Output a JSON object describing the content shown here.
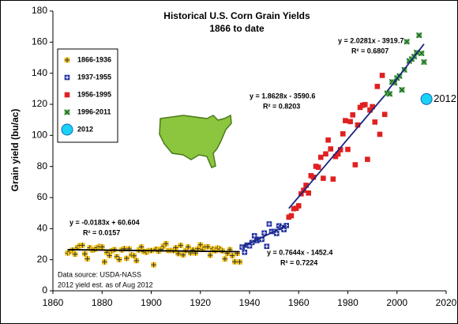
{
  "chart_data": {
    "type": "scatter",
    "title": [
      "Historical U.S. Corn Grain Yields",
      "1866 to date"
    ],
    "y_label": "Grain yield (bu/ac)",
    "annotations": [
      "Data source: USDA-NASS",
      "2012 yield est. as of Aug 2012"
    ],
    "xlim": [
      1860,
      2020
    ],
    "xticks": [
      1860,
      1880,
      1900,
      1920,
      1940,
      1960,
      1980,
      2000,
      2020
    ],
    "ylim": [
      0,
      180
    ],
    "yticks": [
      0,
      20,
      40,
      60,
      80,
      100,
      120,
      140,
      160,
      180
    ],
    "grid": false,
    "legend": "upper left",
    "series": [
      {
        "name": "1866-1936",
        "color": "#f5c518",
        "marker": "star",
        "x": [
          1866,
          1867,
          1868,
          1869,
          1870,
          1871,
          1872,
          1873,
          1874,
          1875,
          1876,
          1877,
          1878,
          1879,
          1880,
          1881,
          1882,
          1883,
          1884,
          1885,
          1886,
          1887,
          1888,
          1889,
          1890,
          1891,
          1892,
          1893,
          1894,
          1895,
          1896,
          1897,
          1898,
          1899,
          1900,
          1901,
          1902,
          1903,
          1904,
          1905,
          1906,
          1907,
          1908,
          1909,
          1910,
          1911,
          1912,
          1913,
          1914,
          1915,
          1916,
          1917,
          1918,
          1919,
          1920,
          1921,
          1922,
          1923,
          1924,
          1925,
          1926,
          1927,
          1928,
          1929,
          1930,
          1931,
          1932,
          1933,
          1934,
          1935,
          1936
        ],
        "values": [
          24.3,
          25.3,
          26.2,
          23.6,
          27.9,
          29.1,
          29.3,
          23.8,
          20.6,
          27.7,
          26.2,
          26.7,
          27.8,
          28.5,
          28.2,
          18.6,
          24.6,
          22.7,
          25.8,
          26.5,
          22.0,
          20.1,
          26.3,
          27.1,
          20.9,
          27.0,
          23.1,
          22.5,
          19.4,
          26.2,
          28.2,
          25.3,
          24.8,
          25.9,
          25.9,
          16.7,
          26.8,
          25.5,
          26.8,
          28.8,
          30.3,
          25.9,
          26.0,
          25.9,
          27.7,
          23.9,
          29.2,
          23.1,
          25.9,
          28.2,
          24.4,
          26.3,
          24.3,
          27.1,
          29.6,
          26.7,
          28.2,
          28.3,
          22.9,
          27.0,
          25.8,
          27.5,
          26.9,
          25.7,
          20.5,
          24.1,
          26.5,
          22.6,
          18.7,
          24.0,
          18.6
        ]
      },
      {
        "name": "1937-1955",
        "color": "#1f2f9f",
        "marker": "plus-square",
        "x": [
          1937,
          1938,
          1939,
          1940,
          1941,
          1942,
          1943,
          1944,
          1945,
          1946,
          1947,
          1948,
          1949,
          1950,
          1951,
          1952,
          1953,
          1954,
          1955
        ],
        "values": [
          28.2,
          24.8,
          29.4,
          28.9,
          31.1,
          35.4,
          32.3,
          33.1,
          33.1,
          37.2,
          28.6,
          43.0,
          38.2,
          38.2,
          36.9,
          41.8,
          40.7,
          39.4,
          42.0
        ]
      },
      {
        "name": "1956-1995",
        "color": "#e02020",
        "marker": "square",
        "x": [
          1956,
          1957,
          1958,
          1959,
          1960,
          1961,
          1962,
          1963,
          1964,
          1965,
          1966,
          1967,
          1968,
          1969,
          1970,
          1971,
          1972,
          1973,
          1974,
          1975,
          1976,
          1977,
          1978,
          1979,
          1980,
          1981,
          1982,
          1983,
          1984,
          1985,
          1986,
          1987,
          1988,
          1989,
          1990,
          1991,
          1992,
          1993,
          1994,
          1995
        ],
        "values": [
          47.4,
          48.3,
          52.8,
          53.1,
          54.7,
          62.4,
          64.7,
          67.9,
          62.9,
          74.1,
          73.1,
          80.1,
          79.5,
          85.9,
          72.4,
          88.1,
          97.0,
          91.3,
          71.9,
          86.4,
          88.0,
          90.8,
          101.0,
          109.5,
          91.0,
          108.9,
          113.2,
          81.1,
          106.7,
          118.0,
          119.4,
          119.8,
          84.6,
          116.3,
          118.5,
          108.6,
          131.5,
          100.7,
          138.6,
          113.5
        ]
      },
      {
        "name": "1996-2011",
        "color": "#5cb85c",
        "marker": "x-square",
        "x": [
          1996,
          1997,
          1998,
          1999,
          2000,
          2001,
          2002,
          2003,
          2004,
          2005,
          2006,
          2007,
          2008,
          2009,
          2010,
          2011
        ],
        "values": [
          127.1,
          126.7,
          134.4,
          133.8,
          136.9,
          138.2,
          129.3,
          142.2,
          160.3,
          147.9,
          149.1,
          150.7,
          153.3,
          164.4,
          152.8,
          147.2
        ]
      },
      {
        "name": "2012",
        "color": "#19d3f5",
        "marker": "circle",
        "x": [
          2012
        ],
        "values": [
          123.4
        ],
        "value_labels": [
          "2012"
        ]
      }
    ],
    "trendlines": [
      {
        "equation": "y = -0.0183x + 60.604",
        "r2": "R² = 0.0157",
        "color": "#000000",
        "x": [
          1866,
          1936
        ],
        "y": [
          26.46,
          25.17
        ]
      },
      {
        "equation": "y = 0.7644x - 1452.4",
        "r2": "R² = 0.7224",
        "color": "#1a237e",
        "x": [
          1937,
          1955
        ],
        "y": [
          28.24,
          42.0
        ]
      },
      {
        "equation": "y = 1.8628x - 3590.6",
        "r2": "R² = 0.8203",
        "color": "#1a237e",
        "x": [
          1956,
          1995
        ],
        "y": [
          53.0,
          125.7
        ]
      },
      {
        "equation": "y = 2.0281x - 3919.7",
        "r2": "R² = 0.6807",
        "color": "#1a237e",
        "x": [
          1996,
          2011
        ],
        "y": [
          128.4,
          158.8
        ]
      }
    ]
  }
}
